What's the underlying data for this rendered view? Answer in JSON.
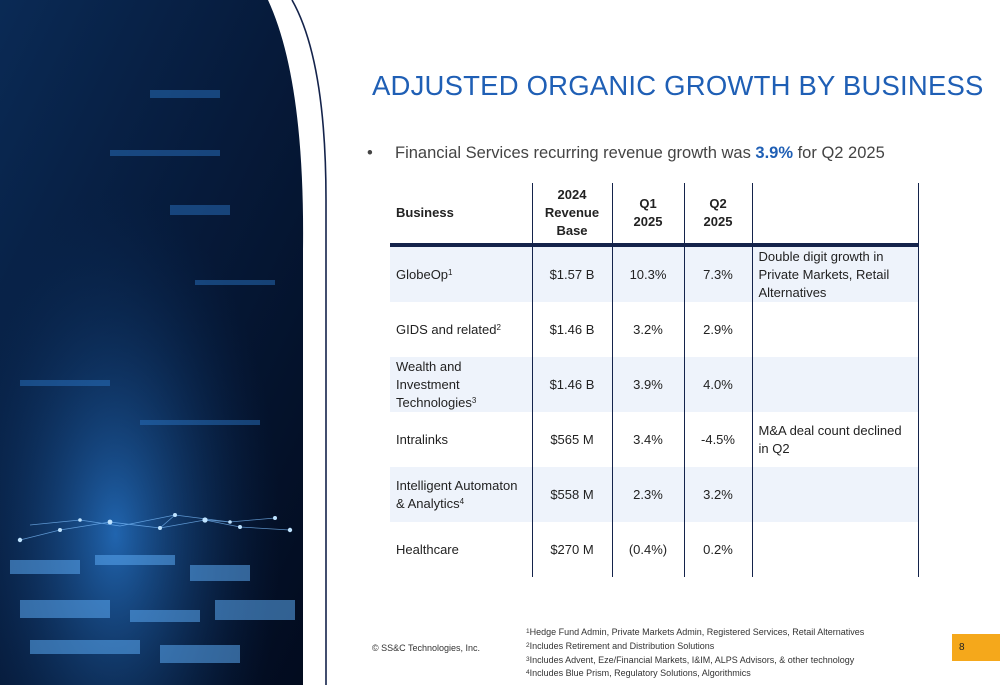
{
  "title": "ADJUSTED ORGANIC GROWTH BY BUSINESS",
  "bullet": {
    "marker": "•",
    "prefix": "Financial Services recurring revenue growth was ",
    "highlight": "3.9%",
    "suffix": " for Q2 2025"
  },
  "table": {
    "headers": {
      "business": "Business",
      "base": [
        "2024",
        "Revenue",
        "Base"
      ],
      "q1": [
        "Q1",
        "2025"
      ],
      "q2": [
        "Q2",
        "2025"
      ],
      "note": ""
    },
    "rows": [
      {
        "business": "GlobeOp",
        "sup": "1",
        "base": "$1.57 B",
        "q1": "10.3%",
        "q2": "7.3%",
        "note": "Double digit growth in Private Markets, Retail Alternatives"
      },
      {
        "business": "GIDS and related",
        "sup": "2",
        "base": "$1.46 B",
        "q1": "3.2%",
        "q2": "2.9%",
        "note": ""
      },
      {
        "business": "Wealth and Investment Technologies",
        "sup": "3",
        "base": "$1.46 B",
        "q1": "3.9%",
        "q2": "4.0%",
        "note": ""
      },
      {
        "business": "Intralinks",
        "sup": "",
        "base": "$565 M",
        "q1": "3.4%",
        "q2": "-4.5%",
        "note": "M&A deal count declined in Q2"
      },
      {
        "business": "Intelligent Automaton & Analytics",
        "sup": "4",
        "base": "$558 M",
        "q1": "2.3%",
        "q2": "3.2%",
        "note": ""
      },
      {
        "business": "Healthcare",
        "sup": "",
        "base": "$270 M",
        "q1": "(0.4%)",
        "q2": "0.2%",
        "note": ""
      }
    ]
  },
  "copyright": "© SS&C Technologies, Inc.",
  "footnotes": [
    {
      "sup": "1",
      "text": "Hedge Fund Admin, Private Markets Admin, Registered Services, Retail Alternatives"
    },
    {
      "sup": "2",
      "text": "Includes Retirement and Distribution Solutions"
    },
    {
      "sup": "3",
      "text": "Includes Advent, Eze/Financial Markets, I&IM, ALPS Advisors, & other technology"
    },
    {
      "sup": "4",
      "text": "Includes Blue Prism, Regulatory Solutions, Algorithmics"
    }
  ],
  "page_number": "8",
  "colors": {
    "accent": "#1f5fb5",
    "navy": "#14234b",
    "row_shade": "#eef3fb",
    "page_badge": "#f5a81b"
  }
}
